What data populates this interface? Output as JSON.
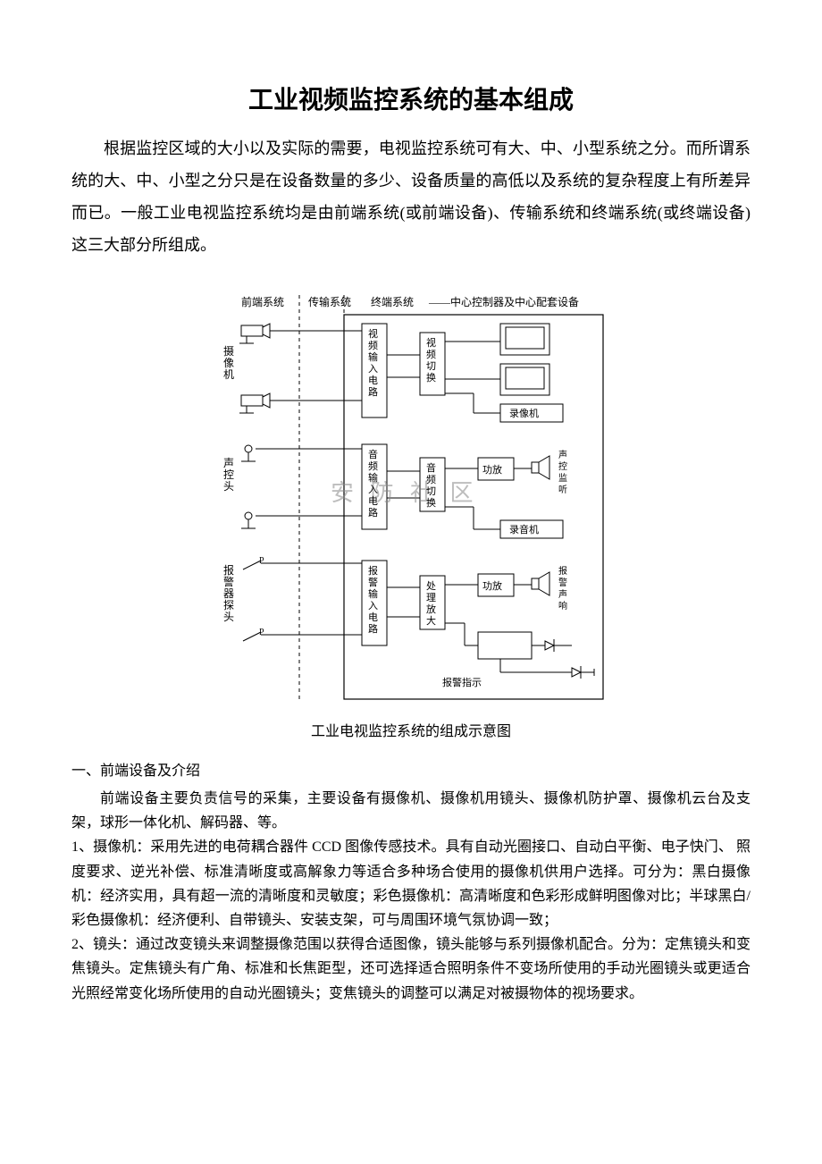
{
  "title": "工业视频监控系统的基本组成",
  "intro": "根据监控区域的大小以及实际的需要，电视监控系统可有大、中、小型系统之分。而所谓系统的大、中、小型之分只是在设备数量的多少、设备质量的高低以及系统的复杂程度上有所差异而已。一般工业电视监控系统均是由前端系统(或前端设备)、传输系统和终端系统(或终端设备)这三大部分所组成。",
  "diagram": {
    "caption": "工业电视监控系统的组成示意图",
    "watermark": "安 防 社 区",
    "header": {
      "front": "前端系统",
      "transmit": "传输系统",
      "terminal": "终端系统",
      "right": "——中心控制器及中心配套设备"
    },
    "labels": {
      "camera_side": "摄像机",
      "audio_side": "声控头",
      "alarm_side": "报警器探头",
      "video_in": "视频输入电路",
      "video_sw": "视频切换",
      "recorder_v": "录像机",
      "audio_in": "音频输入电路",
      "audio_sw": "音频切换",
      "amp": "功放",
      "audio_mon": "声控监听",
      "recorder_a": "录音机",
      "alarm_in": "报警输入电路",
      "proc": "处理放大",
      "amp2": "功放",
      "alarm_sound": "报警声响",
      "alarm_ind": "报警指示"
    },
    "style": {
      "stroke": "#000000",
      "stroke_width": 1.2,
      "dash": "4,4",
      "font_size_header": 12,
      "font_size_label": 11,
      "font_size_side": 12
    }
  },
  "section1_heading": "一、前端设备及介绍",
  "section1_p1": "前端设备主要负责信号的采集，主要设备有摄像机、摄像机用镜头、摄像机防护罩、摄像机云台及支架，球形一体化机、解码器、等。",
  "section1_p2": "1、摄像机：采用先进的电荷耦合器件 CCD 图像传感技术。具有自动光圈接口、自动白平衡、电子快门、 照度要求、逆光补偿、标准清晰度或高解象力等适合多种场合使用的摄像机供用户选择。可分为：黑白摄像机：经济实用，具有超一流的清晰度和灵敏度；彩色摄像机：高清晰度和色彩形成鲜明图像对比；半球黑白/彩色摄像机：经济便利、自带镜头、安装支架，可与周围环境气氛协调一致；",
  "section1_p3": "2、镜头：通过改变镜头来调整摄像范围以获得合适图像，镜头能够与系列摄像机配合。分为：定焦镜头和变焦镜头。定焦镜头有广角、标准和长焦距型，还可选择适合照明条件不变场所使用的手动光圈镜头或更适合光照经常变化场所使用的自动光圈镜头；变焦镜头的调整可以满足对被摄物体的视场要求。"
}
